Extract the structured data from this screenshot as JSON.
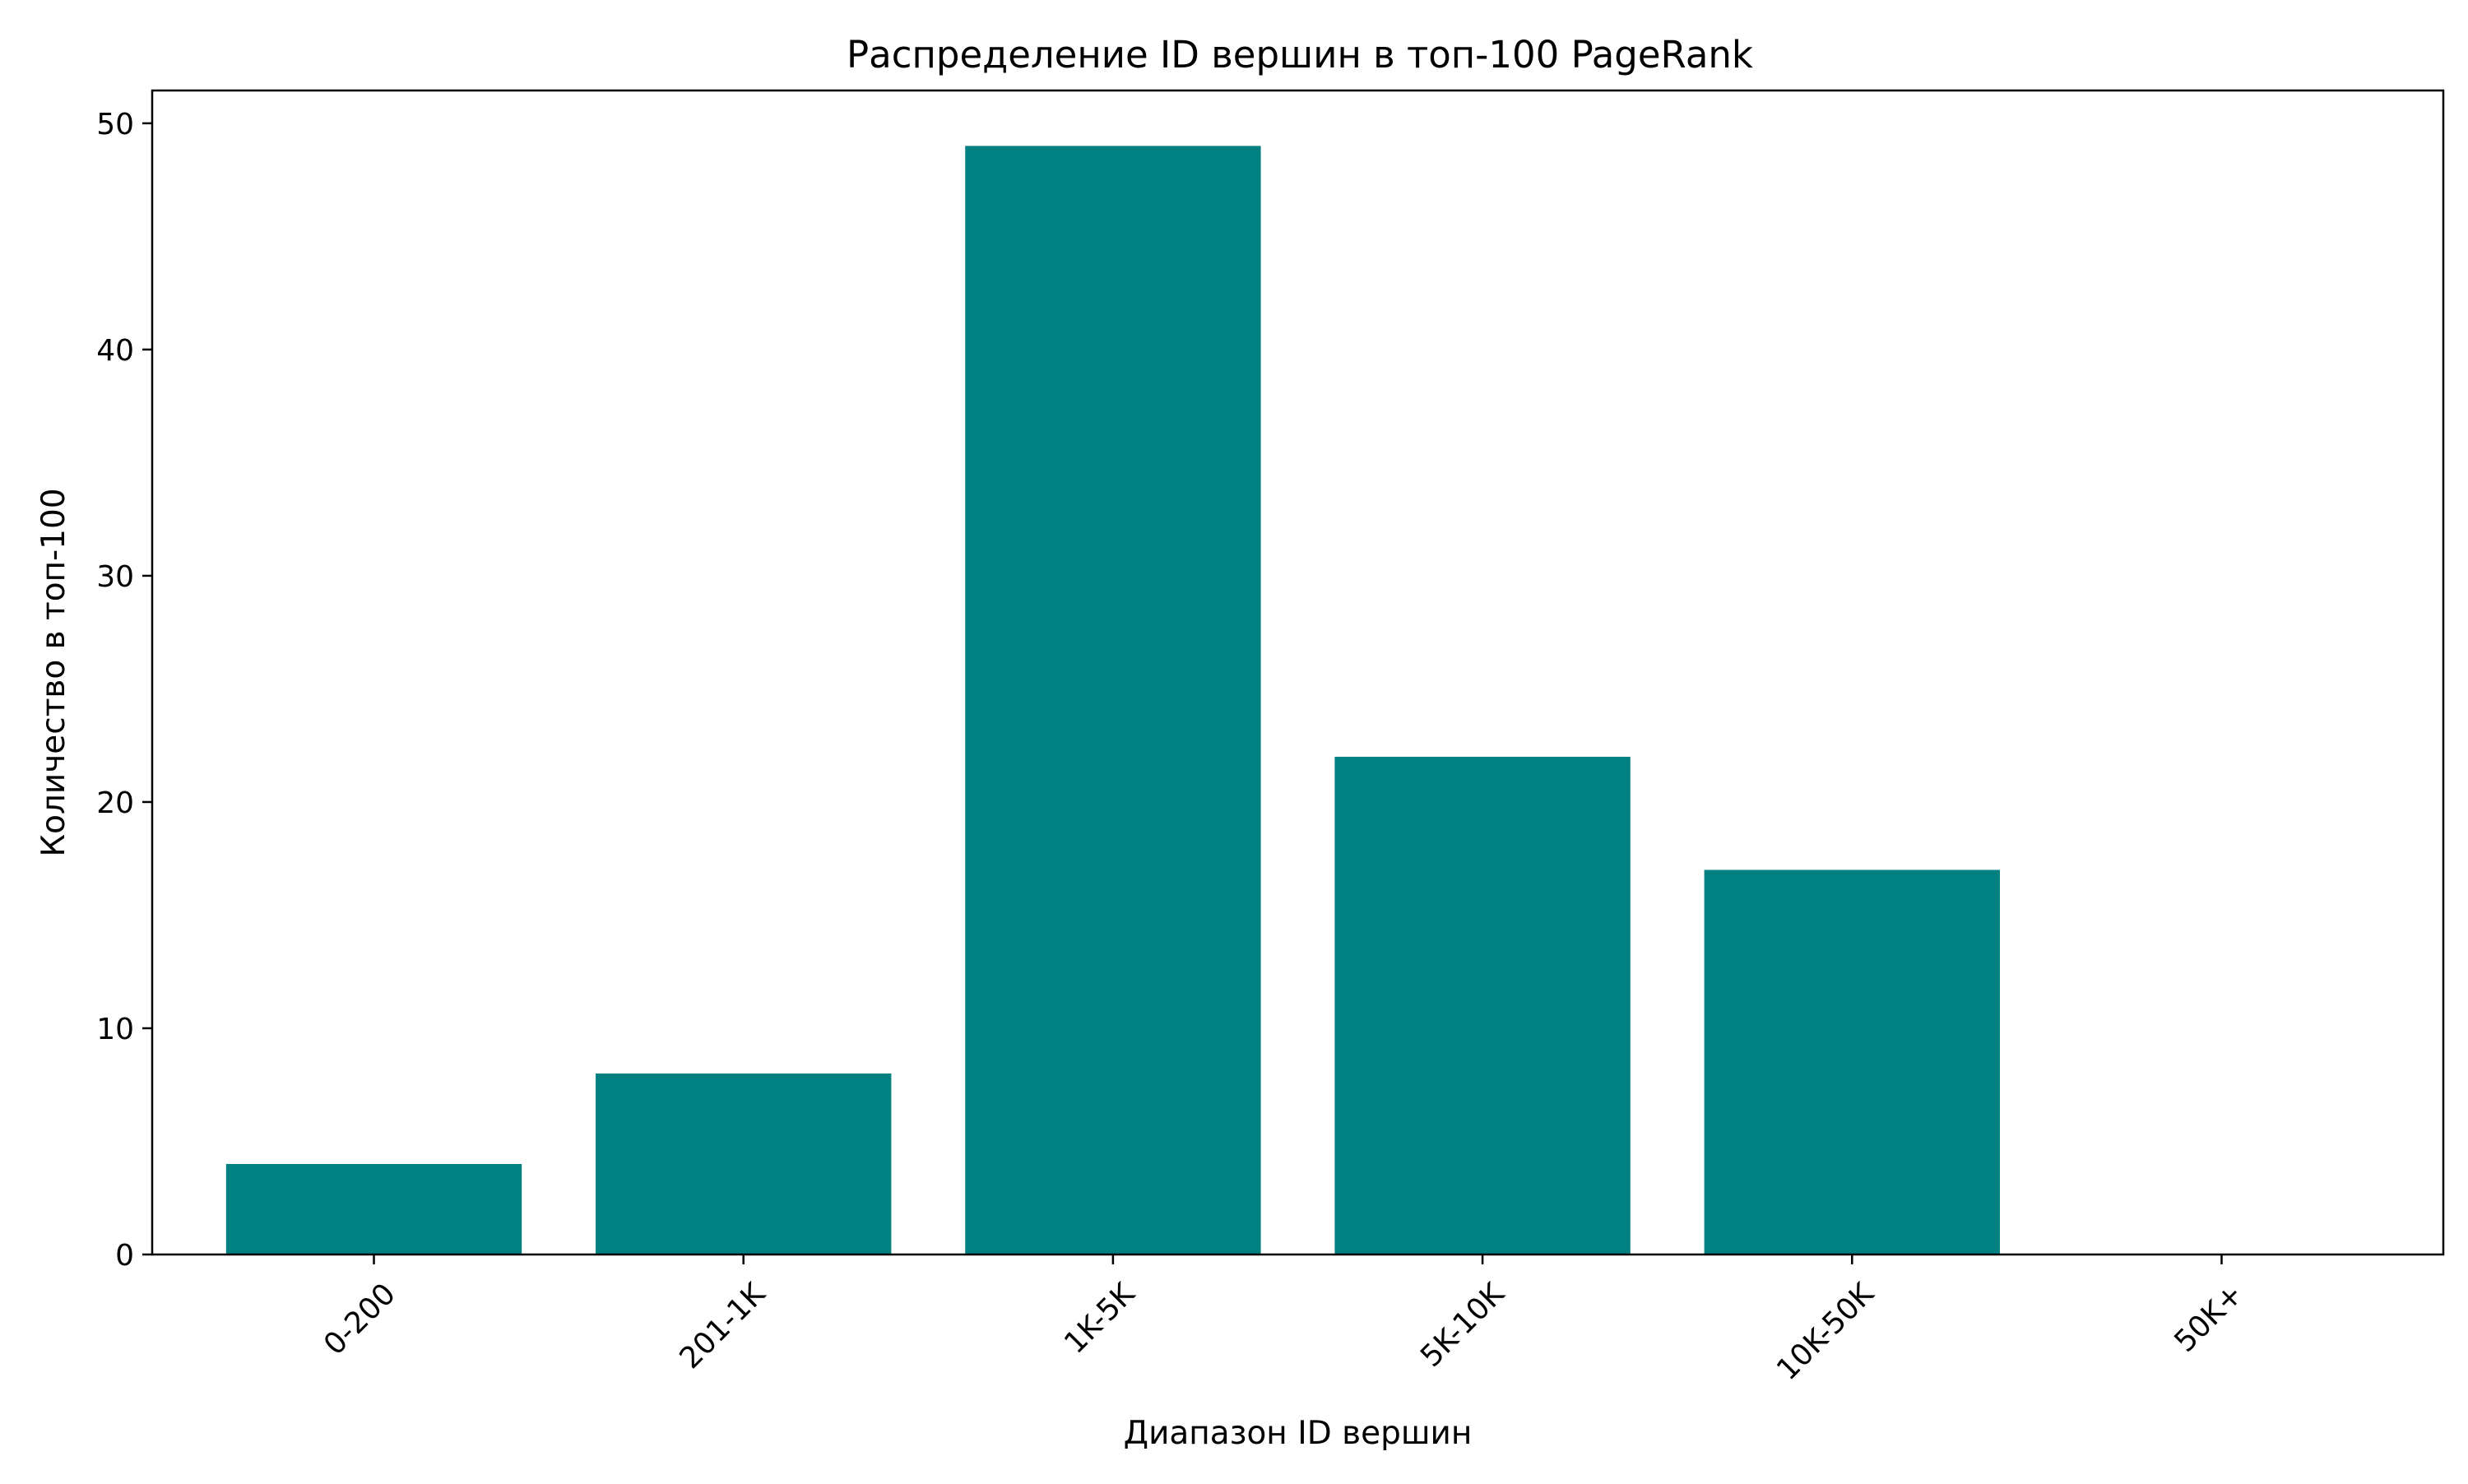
{
  "chart_data": {
    "type": "bar",
    "title": "Распределение ID вершин в топ-100 PageRank",
    "xlabel": "Диапазон ID вершин",
    "ylabel": "Количество в топ-100",
    "categories": [
      "0-200",
      "201-1K",
      "1K-5K",
      "5K-10K",
      "10K-50K",
      "50K+"
    ],
    "values": [
      4,
      8,
      49,
      22,
      17,
      0
    ],
    "ylim": [
      0,
      51.45
    ],
    "yticks": [
      0,
      10,
      20,
      30,
      40,
      50
    ],
    "bar_color": "#008080",
    "grid": false,
    "legend": "none",
    "xtick_rotation_deg": 45
  }
}
